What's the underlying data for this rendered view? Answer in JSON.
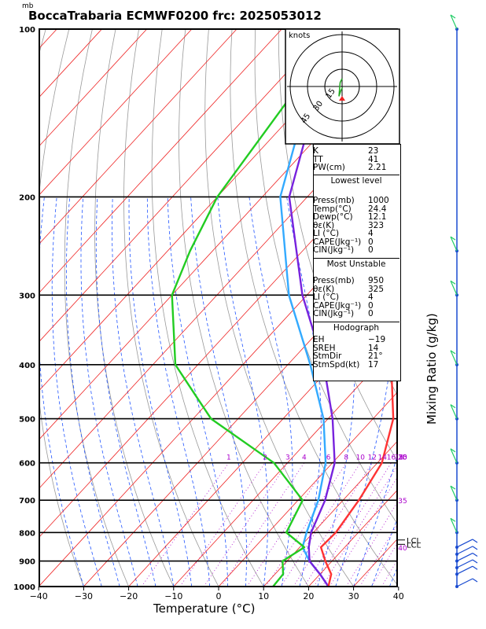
{
  "title": "BoccaTrabaria ECMWF0200 frc: 2025053012",
  "pressure_unit": "mb",
  "xlabel": "Temperature (°C)",
  "mixing_ratio_label": "Mixing Ratio (g/kg)",
  "hodograph": {
    "unit": "knots",
    "ring_labels": [
      "15",
      "30",
      "45"
    ]
  },
  "indices": {
    "top": [
      {
        "label": "K",
        "value": "23"
      },
      {
        "label": "TT",
        "value": "41"
      },
      {
        "label": "PW(cm)",
        "value": "2.21"
      }
    ],
    "lowest_title": "Lowest level",
    "lowest": [
      {
        "label": "Press(mb)",
        "value": "1000"
      },
      {
        "label": "Temp(°C)",
        "value": "24.4"
      },
      {
        "label": "Dewp(°C)",
        "value": "12.1"
      },
      {
        "label": "θε(K)",
        "value": "323"
      },
      {
        "label": "LI (°C)",
        "value": "4"
      },
      {
        "label": "CAPE(Jkg⁻¹)",
        "value": "0"
      },
      {
        "label": "CIN(Jkg⁻¹)",
        "value": "0"
      }
    ],
    "unstable_title": "Most Unstable",
    "unstable": [
      {
        "label": "Press(mb)",
        "value": "950"
      },
      {
        "label": "θε(K)",
        "value": "325"
      },
      {
        "label": "LI (°C)",
        "value": "4"
      },
      {
        "label": "CAPE(Jkg⁻¹)",
        "value": "0"
      },
      {
        "label": "CIN(Jkg⁻¹)",
        "value": "0"
      }
    ],
    "hodo_title": "Hodograph",
    "hodo": [
      {
        "label": "EH",
        "value": "−19"
      },
      {
        "label": "SREH",
        "value": "14"
      },
      {
        "label": "StmDir",
        "value": "21°"
      },
      {
        "label": "StmSpd(kt)",
        "value": "17"
      }
    ]
  },
  "chart_data": {
    "type": "line",
    "chart_kind": "skew-T log-p",
    "xlabel": "Temperature (°C)",
    "ylabel": "mb",
    "xlim": [
      -40,
      40
    ],
    "ylim": [
      1000,
      100
    ],
    "y_scale": "log",
    "x_ticks": [
      -40,
      -30,
      -20,
      -10,
      0,
      10,
      20,
      30,
      40
    ],
    "y_ticks": [
      100,
      200,
      300,
      400,
      500,
      600,
      700,
      800,
      900,
      1000
    ],
    "mixing_ratio_ticks": [
      "1",
      "2",
      "3",
      "4",
      "6",
      "8",
      "10",
      "12",
      "14",
      "16",
      "18",
      "20",
      "25",
      "30",
      "35",
      "40"
    ],
    "level_labels": [
      "LCL",
      "LCL"
    ],
    "colors": {
      "temperature": "#ff3333",
      "dewpoint": "#22cc22",
      "parcel_light": "#33aaff",
      "parcel_purple": "#7722dd",
      "mixing_ratio_label": "#aa00cc",
      "isotherms": "#ee2222",
      "dry_adiabats": "#999999",
      "moist_adiabats": "#2255ff"
    },
    "series": [
      {
        "p": [
          1000,
          950,
          900,
          850,
          800,
          700,
          600,
          500,
          400,
          300,
          250,
          200,
          150,
          100
        ],
        "values": [
          24.4,
          22.5,
          18.5,
          14.7,
          15.0,
          13.5,
          11.0,
          4.5,
          -7.0,
          -24.0,
          -33.5,
          -37.0,
          -43.0,
          -49.0
        ]
      },
      {
        "p": [
          1000,
          950,
          900,
          850,
          800,
          700,
          600,
          500,
          450,
          400,
          300,
          250,
          200,
          100
        ],
        "values": [
          12.1,
          11.8,
          9.0,
          11.0,
          4.0,
          1.0,
          -13.0,
          -36.0,
          -45.0,
          -55.0,
          -70.0,
          -75.0,
          -80.0,
          -87.0
        ]
      },
      {
        "p": [
          1000,
          950,
          900,
          850,
          800,
          700,
          600,
          500,
          400,
          300,
          200,
          150,
          100
        ],
        "values": [
          24.4,
          20.0,
          15.0,
          10.6,
          8.5,
          4.5,
          -1.5,
          -11.0,
          -25.0,
          -44.0,
          -66.0,
          -76.0,
          -88.0
        ]
      },
      {
        "p": [
          1000,
          950,
          900,
          850,
          800,
          700,
          600,
          500,
          400,
          300,
          200,
          150,
          100
        ],
        "values": [
          24.4,
          20.0,
          15.0,
          12.0,
          9.5,
          6.0,
          0.5,
          -9.0,
          -22.0,
          -41.0,
          -64.0,
          -74.0,
          -86.0
        ]
      }
    ]
  },
  "wind_profile": {
    "hodograph_points": [
      [
        0.5,
        0.5
      ],
      [
        -1.5,
        2.0
      ],
      [
        -4.0,
        5.0
      ],
      [
        -2.5,
        -2.0
      ],
      [
        0.0,
        -4.0
      ]
    ],
    "barb_levels": [
      1000,
      950,
      925,
      900,
      875,
      850,
      800,
      700,
      600,
      500,
      400,
      300,
      250,
      100
    ]
  }
}
